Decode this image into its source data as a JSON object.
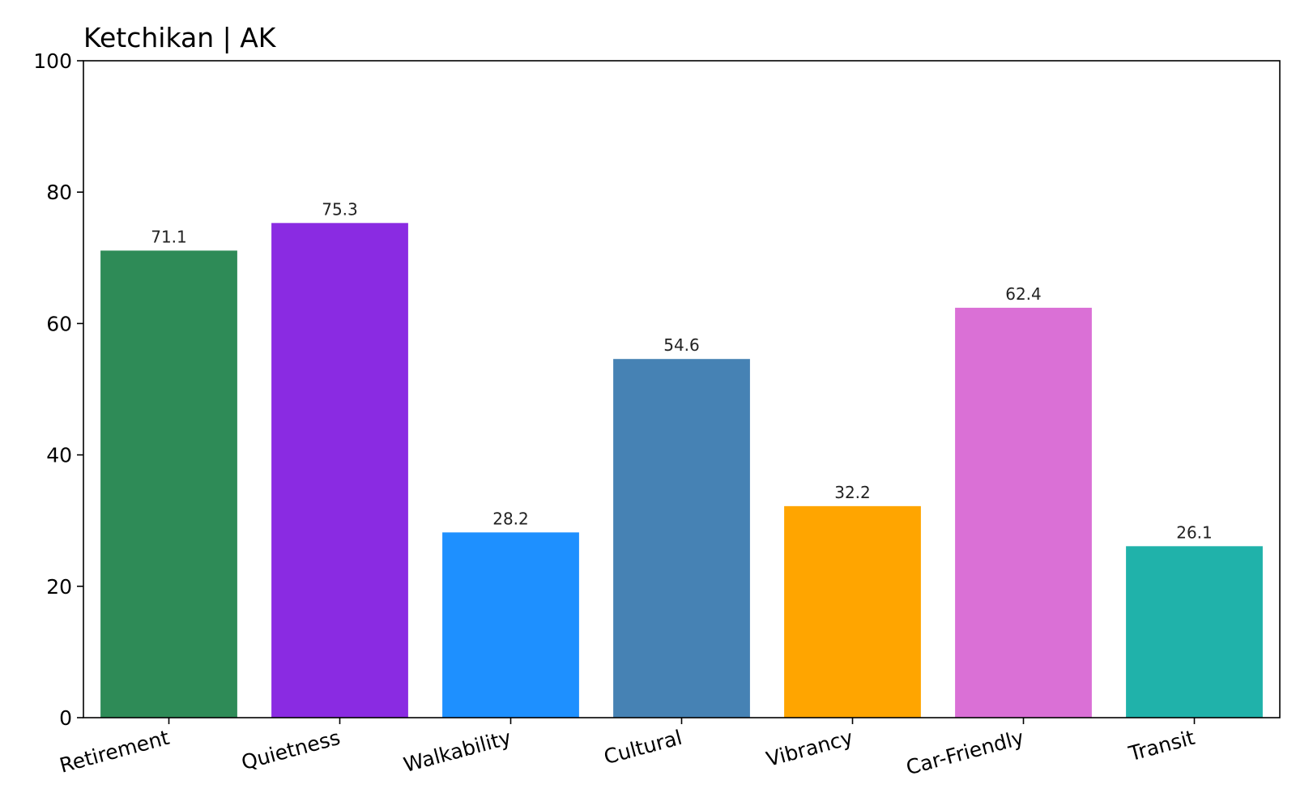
{
  "chart_data": {
    "type": "bar",
    "title": "Ketchikan | AK",
    "xlabel": "",
    "ylabel": "",
    "ylim": [
      0,
      100
    ],
    "yticks": [
      0,
      20,
      40,
      60,
      80,
      100
    ],
    "grid": false,
    "legend": "none",
    "categories": [
      "Retirement",
      "Quietness",
      "Walkability",
      "Cultural",
      "Vibrancy",
      "Car-Friendly",
      "Transit"
    ],
    "values": [
      71.1,
      75.3,
      28.2,
      54.6,
      32.2,
      62.4,
      26.1
    ],
    "value_labels": [
      "71.1",
      "75.3",
      "28.2",
      "54.6",
      "32.2",
      "62.4",
      "26.1"
    ],
    "colors": [
      "#2e8b57",
      "#8a2be2",
      "#1e90ff",
      "#4682b4",
      "#ffa500",
      "#da70d6",
      "#20b2aa"
    ]
  }
}
